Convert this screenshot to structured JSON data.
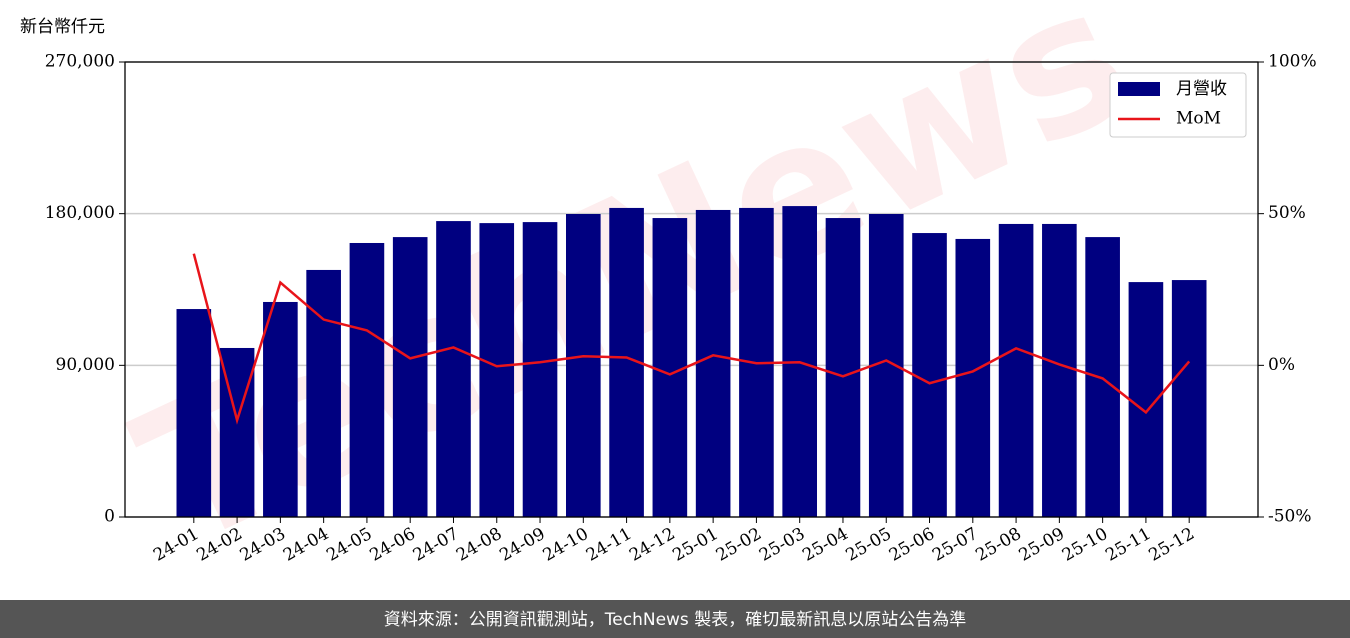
{
  "chart_data": {
    "type": "bar",
    "y_label": "新台幣仟元",
    "watermark": "TechNews",
    "footer": "資料來源：公開資訊觀測站，TechNews 製表，確切最新訊息以原站公告為準",
    "categories": [
      "24-01",
      "24-02",
      "24-03",
      "24-04",
      "24-05",
      "24-06",
      "24-07",
      "24-08",
      "24-09",
      "24-10",
      "24-11",
      "24-12",
      "25-01",
      "25-02",
      "25-03",
      "25-04",
      "25-05",
      "25-06",
      "25-07",
      "25-08",
      "25-09",
      "25-10",
      "25-11",
      "25-12"
    ],
    "series": [
      {
        "name": "月營收",
        "type": "bar",
        "color": "#000080",
        "values": [
          123400,
          100300,
          127600,
          146600,
          162600,
          166100,
          175600,
          174400,
          175000,
          179800,
          183400,
          177400,
          182200,
          183400,
          184500,
          177400,
          179800,
          168500,
          165000,
          173900,
          173900,
          166100,
          139400,
          140600
        ]
      },
      {
        "name": "MoM",
        "type": "line",
        "axis": "y2",
        "color": "#e8141a",
        "values": [
          36.8,
          -18.1,
          27.3,
          15.1,
          11.5,
          2.3,
          5.9,
          -0.3,
          1.0,
          3.0,
          2.6,
          -3.0,
          3.3,
          0.7,
          1.0,
          -3.6,
          1.6,
          -5.9,
          -2.0,
          5.6,
          0.3,
          -4.3,
          -15.5,
          1.3
        ]
      }
    ],
    "ylim": [
      0,
      270000
    ],
    "yticks": [
      0,
      {
        "value": 90000,
        "label": "90,000"
      },
      {
        "value": 180000,
        "label": "180,000"
      },
      {
        "value": 270000,
        "label": "270,000"
      }
    ],
    "y2lim": [
      -50,
      100
    ],
    "y2ticks": [
      {
        "value": -50,
        "label": "-50%"
      },
      {
        "value": 0,
        "label": "0%"
      },
      {
        "value": 50,
        "label": "50%"
      },
      {
        "value": 100,
        "label": "100%"
      }
    ],
    "grid": true,
    "legend": "upper right"
  }
}
